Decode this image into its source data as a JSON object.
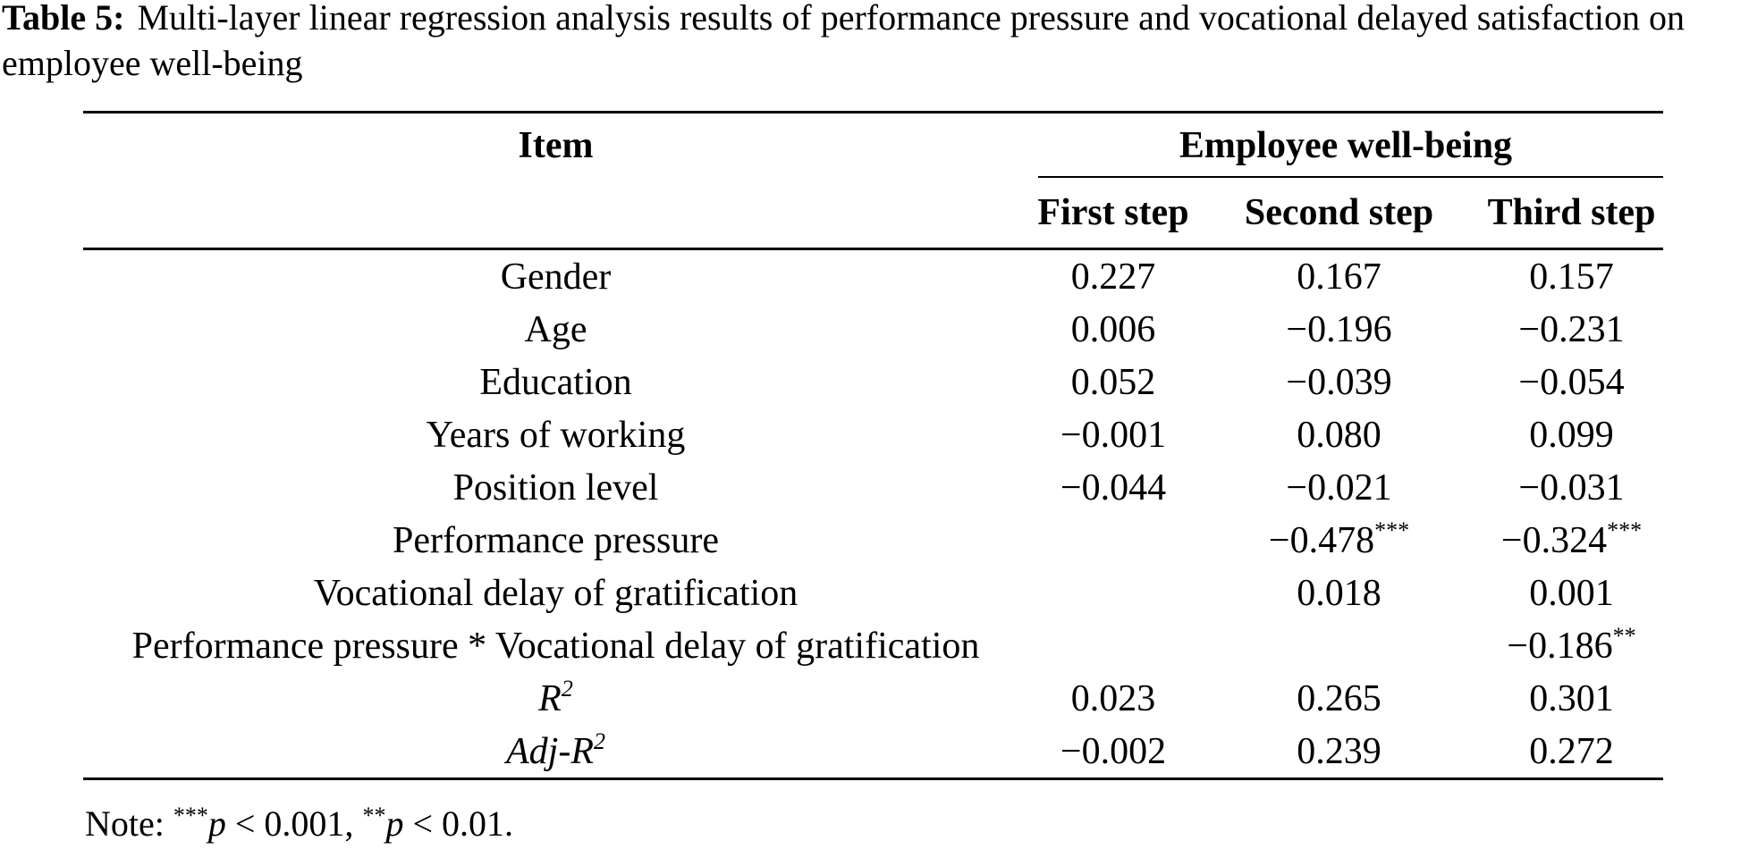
{
  "caption": {
    "label": "Table 5:",
    "text": "Multi-layer linear regression analysis results of performance pressure and vocational delayed satisfaction on employee well-being"
  },
  "colors": {
    "text": "#000000",
    "background": "#ffffff"
  },
  "table": {
    "item_header": "Item",
    "spanner": "Employee well-being",
    "steps": [
      "First step",
      "Second step",
      "Third step"
    ],
    "rows": [
      {
        "label": "Gender",
        "values": [
          "0.227",
          "0.167",
          "0.157"
        ]
      },
      {
        "label": "Age",
        "values": [
          "0.006",
          "−0.196",
          "−0.231"
        ]
      },
      {
        "label": "Education",
        "values": [
          "0.052",
          "−0.039",
          "−0.054"
        ]
      },
      {
        "label": "Years of working",
        "values": [
          "−0.001",
          "0.080",
          "0.099"
        ]
      },
      {
        "label": "Position level",
        "values": [
          "−0.044",
          "−0.021",
          "−0.031"
        ]
      },
      {
        "label": "Performance pressure",
        "values": [
          "",
          "−0.478***",
          "−0.324***"
        ]
      },
      {
        "label": "Vocational delay of gratification",
        "values": [
          "",
          "0.018",
          "0.001"
        ]
      },
      {
        "label": "Performance pressure * Vocational delay of gratification",
        "values": [
          "",
          "",
          "−0.186**"
        ]
      },
      {
        "label": "R",
        "label_sup": "2",
        "label_italic": true,
        "values": [
          "0.023",
          "0.265",
          "0.301"
        ]
      },
      {
        "label": "Adj-R",
        "label_sup": "2",
        "label_italic": true,
        "values": [
          "−0.002",
          "0.239",
          "0.272"
        ]
      }
    ]
  },
  "note": {
    "parts": [
      {
        "text": "Note: "
      },
      {
        "text": "***",
        "sup": true
      },
      {
        "text": "p",
        "italic": true
      },
      {
        "text": " < 0.001, "
      },
      {
        "text": "**",
        "sup": true
      },
      {
        "text": "p",
        "italic": true
      },
      {
        "text": " < 0.01."
      }
    ]
  }
}
